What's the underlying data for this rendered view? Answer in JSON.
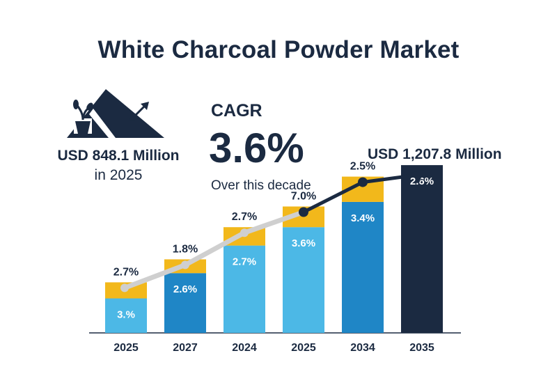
{
  "title": "White Charcoal Powder Market",
  "start": {
    "value": "USD 848.1 Million",
    "year": "in 2025"
  },
  "cagr": {
    "label": "CAGR",
    "value": "3.6%",
    "sub": "Over this decade"
  },
  "end": {
    "value": "USD 1,207.8 Million"
  },
  "colors": {
    "navy": "#1b2a41",
    "light_blue": "#4cb8e6",
    "mid_blue": "#1f86c6",
    "yellow": "#f2b81b",
    "trend_gray": "#cfcfcf"
  },
  "icon": "charcoal-pile-plant-icon",
  "chart_data": {
    "type": "bar",
    "categories": [
      "2025",
      "2027",
      "2024",
      "2025",
      "2034",
      "2035"
    ],
    "base_values": [
      1.5,
      2.6,
      3.8,
      4.6,
      5.7,
      7.3
    ],
    "top_values": [
      0.7,
      0.6,
      0.8,
      0.9,
      1.1,
      0
    ],
    "base_labels": [
      "3.%",
      "2.6%",
      "2.7%",
      "3.6%",
      "3.4%",
      "2.6%"
    ],
    "top_labels": [
      "2.7%",
      "1.8%",
      "2.7%",
      "7.0%",
      "2.5%",
      ""
    ],
    "ylim": [
      0,
      8
    ],
    "xlabel": "",
    "ylabel": ""
  }
}
